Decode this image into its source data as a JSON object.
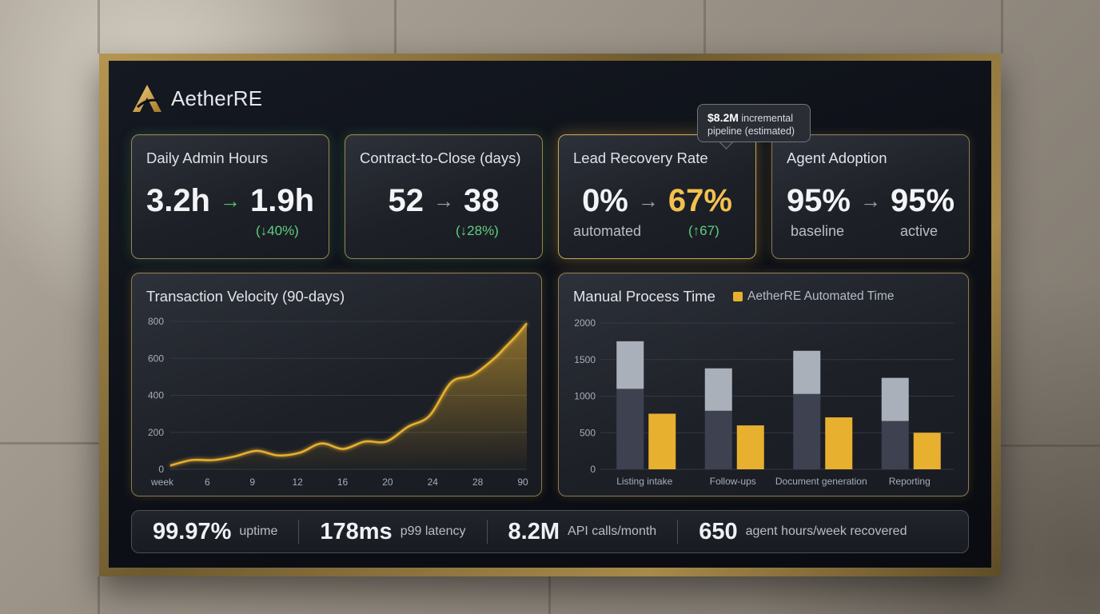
{
  "brand": {
    "name": "AetherRE",
    "accent": "#d4a23a"
  },
  "kpis": [
    {
      "title": "Daily Admin Hours",
      "before": "3.2h",
      "after": "1.9h",
      "delta": "(↓40%)"
    },
    {
      "title": "Contract-to-Close (days)",
      "before": "52",
      "after": "38",
      "delta": "(↓28%)"
    },
    {
      "title": "Lead Recovery Rate",
      "before": "0%",
      "after": "67%",
      "before_sub": "automated",
      "delta": "(↑67)"
    },
    {
      "title": "Agent Adoption",
      "before": "95%",
      "after": "95%",
      "before_sub": "baseline",
      "after_sub": "active"
    }
  ],
  "tooltip": {
    "value": "$8.2M",
    "text_line1": "incremental",
    "text_line2": "pipeline (estimated)"
  },
  "arrow_glyph": "→",
  "chart_data": [
    {
      "type": "line",
      "title": "Transaction Velocity (90-days)",
      "x_ticks": [
        "week",
        "6",
        "9",
        "12",
        "16",
        "20",
        "24",
        "28",
        "90"
      ],
      "y_ticks": [
        0,
        200,
        400,
        600,
        800
      ],
      "ylim": [
        0,
        800
      ],
      "x": [
        0,
        2,
        4,
        6,
        8,
        10,
        12,
        14,
        16,
        18,
        20,
        22,
        24,
        26,
        28,
        30,
        31,
        32,
        33
      ],
      "values": [
        20,
        50,
        50,
        70,
        100,
        75,
        90,
        140,
        110,
        150,
        150,
        230,
        290,
        470,
        510,
        600,
        660,
        720,
        790
      ],
      "color": "#e8b02f"
    },
    {
      "type": "bar",
      "title": "Manual Process Time",
      "legend": [
        "AetherRE Automated Time"
      ],
      "categories": [
        "Listing intake",
        "Follow-ups",
        "Document generation",
        "Reporting"
      ],
      "y_ticks": [
        0,
        500,
        1000,
        1500,
        2000
      ],
      "ylim": [
        0,
        2000
      ],
      "series": [
        {
          "values": [
            1750,
            1380,
            1620,
            1250
          ],
          "base_values": [
            1100,
            800,
            1030,
            660
          ]
        },
        {
          "name": "AetherRE Automated Time",
          "values": [
            760,
            600,
            710,
            500
          ]
        }
      ],
      "colors": {
        "manual_base": "#3e4250",
        "manual_top": "#aab0ba",
        "automated": "#e8b02f"
      }
    }
  ],
  "footer": [
    {
      "value": "99.97%",
      "label": "uptime"
    },
    {
      "value": "178ms",
      "label": "p99 latency"
    },
    {
      "value": "8.2M",
      "label": "API calls/month"
    },
    {
      "value": "650",
      "label": "agent hours/week recovered"
    }
  ]
}
